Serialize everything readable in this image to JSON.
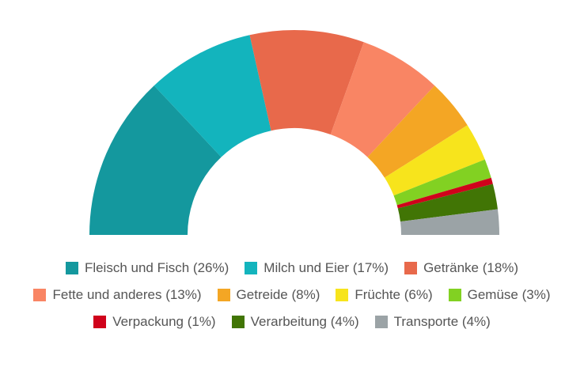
{
  "chart_data": {
    "type": "pie",
    "variant": "semi-donut",
    "legend_position": "bottom",
    "slices": [
      {
        "label": "Fleisch und Fisch (26%)",
        "value": 26,
        "color": "#14989e"
      },
      {
        "label": "Milch und Eier (17%)",
        "value": 17,
        "color": "#13b4bd"
      },
      {
        "label": "Getränke (18%)",
        "value": 18,
        "color": "#e8694b"
      },
      {
        "label": "Fette und anderes (13%)",
        "value": 13,
        "color": "#f98564"
      },
      {
        "label": "Getreide (8%)",
        "value": 8,
        "color": "#f4a624"
      },
      {
        "label": "Früchte (6%)",
        "value": 6,
        "color": "#f7e41c"
      },
      {
        "label": "Gemüse (3%)",
        "value": 3,
        "color": "#82d122"
      },
      {
        "label": "Verpackung (1%)",
        "value": 1,
        "color": "#d0021b"
      },
      {
        "label": "Verarbeitung (4%)",
        "value": 4,
        "color": "#417505"
      },
      {
        "label": "Transporte (4%)",
        "value": 4,
        "color": "#9ba3a6"
      }
    ]
  }
}
